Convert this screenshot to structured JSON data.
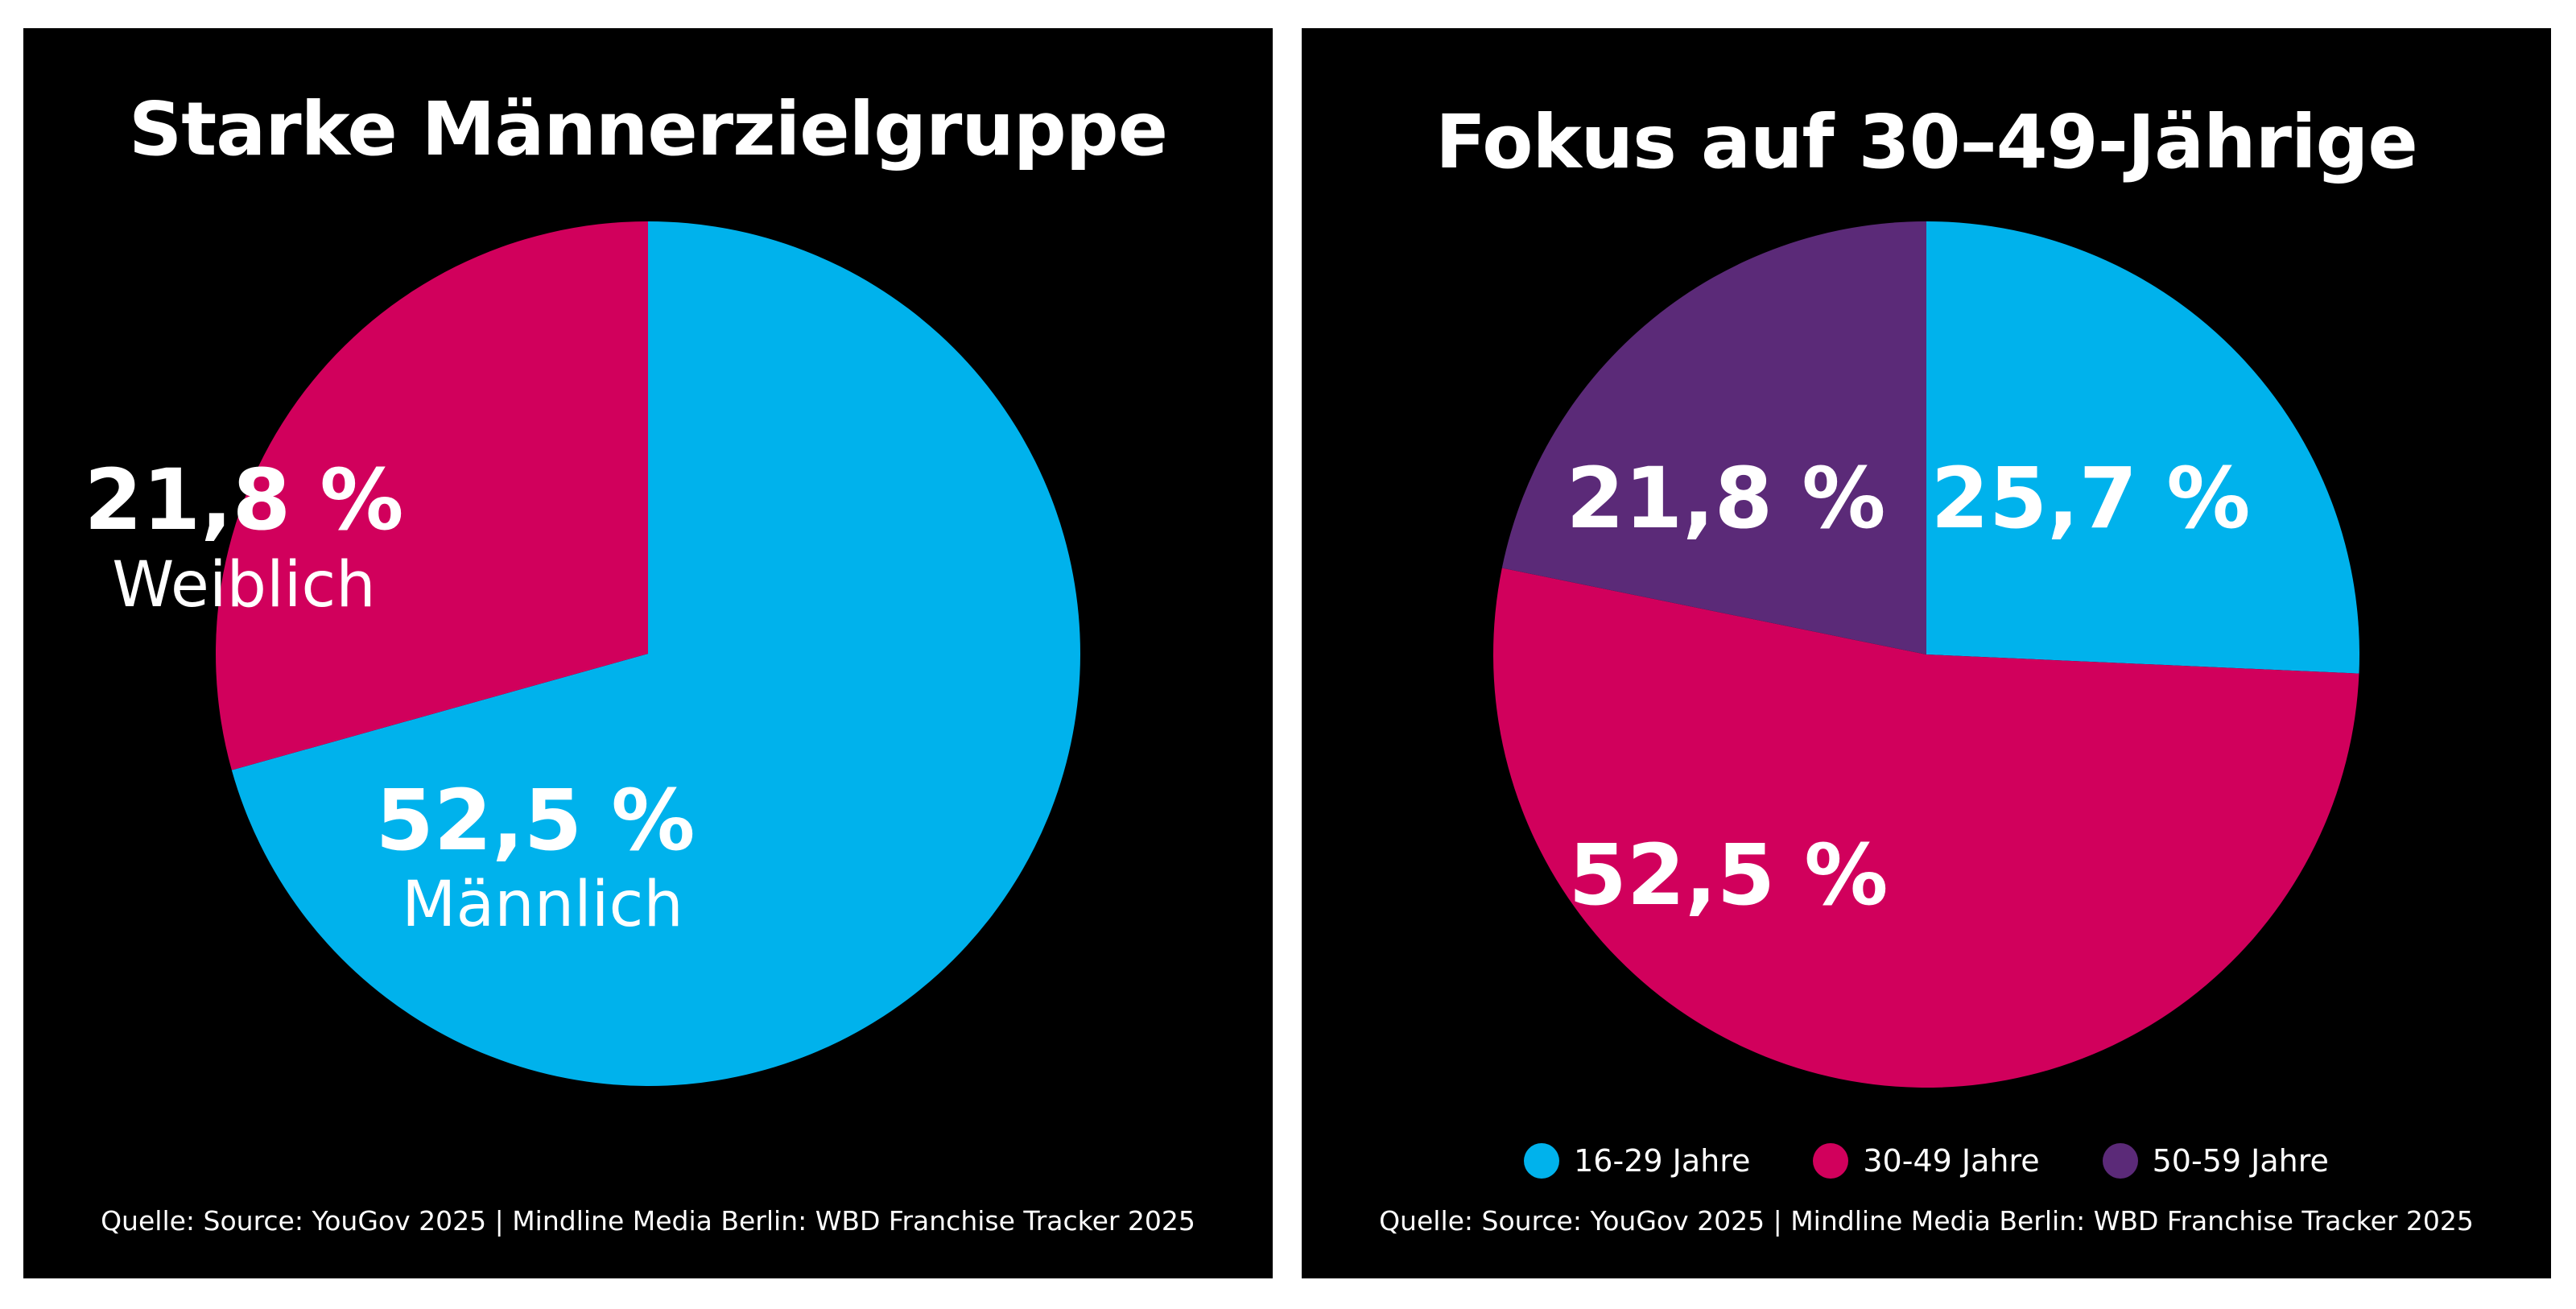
{
  "chart_data": [
    {
      "type": "pie",
      "title": "Starke Männerzielgruppe",
      "slices": [
        {
          "label": "Männlich",
          "value_label": "52,5 %",
          "value": 52.5,
          "color": "#00B2EC"
        },
        {
          "label": "Weiblich",
          "value_label": "21,8 %",
          "value": 21.8,
          "color": "#D1005C"
        }
      ],
      "source": "Quelle: Source: YouGov 2025 | Mindline Media Berlin: WBD Franchise Tracker 2025"
    },
    {
      "type": "pie",
      "title": "Fokus auf 30–49-Jährige",
      "slices": [
        {
          "label": "16-29 Jahre",
          "value_label": "25,7 %",
          "value": 25.7,
          "color": "#00B2EC"
        },
        {
          "label": "30-49 Jahre",
          "value_label": "52,5 %",
          "value": 52.5,
          "color": "#D1005C"
        },
        {
          "label": "50-59 Jahre",
          "value_label": "21,8 %",
          "value": 21.8,
          "color": "#5B2A78"
        }
      ],
      "legend_position": "bottom",
      "source": "Quelle: Source: YouGov 2025 | Mindline Media Berlin: WBD Franchise Tracker 2025"
    }
  ]
}
